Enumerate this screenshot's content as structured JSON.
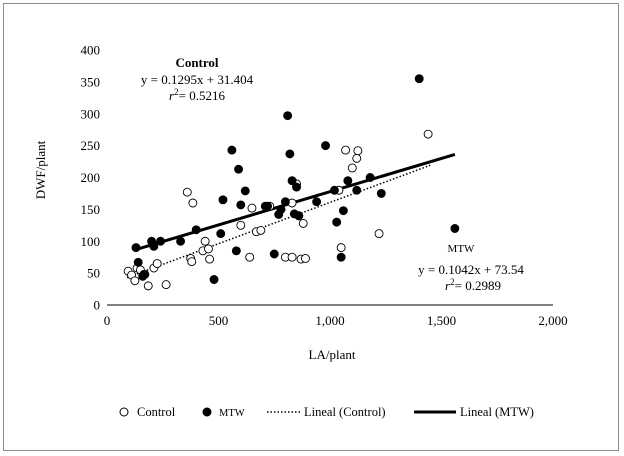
{
  "chart_data": {
    "type": "scatter",
    "xlabel": "LA/plant",
    "ylabel": "DWF/plant",
    "xlim": [
      0,
      2000
    ],
    "ylim": [
      0,
      400
    ],
    "x_ticks": [
      0,
      500,
      1000,
      1500,
      2000
    ],
    "x_tick_labels": [
      "0",
      "500",
      "1,000",
      "1,500",
      "2,000"
    ],
    "y_ticks": [
      0,
      50,
      100,
      150,
      200,
      250,
      300,
      350,
      400
    ],
    "y_tick_labels": [
      "0",
      "50",
      "100",
      "150",
      "200",
      "250",
      "300",
      "350",
      "400"
    ],
    "series": [
      {
        "name": "Control",
        "marker": "open-circle",
        "points": [
          [
            95,
            53
          ],
          [
            110,
            47
          ],
          [
            125,
            38
          ],
          [
            135,
            58
          ],
          [
            150,
            55
          ],
          [
            165,
            48
          ],
          [
            185,
            30
          ],
          [
            210,
            58
          ],
          [
            225,
            65
          ],
          [
            265,
            32
          ],
          [
            360,
            177
          ],
          [
            375,
            73
          ],
          [
            380,
            68
          ],
          [
            385,
            160
          ],
          [
            430,
            85
          ],
          [
            440,
            100
          ],
          [
            455,
            88
          ],
          [
            460,
            72
          ],
          [
            600,
            125
          ],
          [
            640,
            75
          ],
          [
            650,
            152
          ],
          [
            670,
            115
          ],
          [
            690,
            117
          ],
          [
            730,
            155
          ],
          [
            780,
            150
          ],
          [
            800,
            75
          ],
          [
            830,
            75
          ],
          [
            830,
            160
          ],
          [
            850,
            190
          ],
          [
            860,
            140
          ],
          [
            870,
            72
          ],
          [
            880,
            128
          ],
          [
            890,
            73
          ],
          [
            1040,
            180
          ],
          [
            1050,
            90
          ],
          [
            1070,
            243
          ],
          [
            1100,
            215
          ],
          [
            1120,
            230
          ],
          [
            1125,
            242
          ],
          [
            1220,
            112
          ],
          [
            1440,
            268
          ]
        ]
      },
      {
        "name": "MTW",
        "marker": "filled-circle",
        "points": [
          [
            130,
            90
          ],
          [
            140,
            67
          ],
          [
            160,
            45
          ],
          [
            170,
            48
          ],
          [
            200,
            100
          ],
          [
            210,
            92
          ],
          [
            240,
            100
          ],
          [
            330,
            100
          ],
          [
            400,
            118
          ],
          [
            480,
            40
          ],
          [
            510,
            112
          ],
          [
            520,
            165
          ],
          [
            560,
            243
          ],
          [
            580,
            85
          ],
          [
            590,
            213
          ],
          [
            600,
            157
          ],
          [
            620,
            179
          ],
          [
            710,
            155
          ],
          [
            720,
            155
          ],
          [
            750,
            80
          ],
          [
            770,
            142
          ],
          [
            780,
            150
          ],
          [
            800,
            162
          ],
          [
            810,
            297
          ],
          [
            820,
            237
          ],
          [
            830,
            195
          ],
          [
            840,
            143
          ],
          [
            850,
            185
          ],
          [
            860,
            140
          ],
          [
            940,
            162
          ],
          [
            980,
            250
          ],
          [
            1020,
            180
          ],
          [
            1030,
            130
          ],
          [
            1050,
            75
          ],
          [
            1060,
            148
          ],
          [
            1080,
            195
          ],
          [
            1120,
            180
          ],
          [
            1180,
            200
          ],
          [
            1230,
            175
          ],
          [
            1400,
            355
          ],
          [
            1560,
            120
          ]
        ]
      }
    ],
    "trendlines": [
      {
        "name": "Lineal (Control)",
        "style": "dotted",
        "slope": 0.1295,
        "intercept": 31.404,
        "x_range": [
          90,
          1450
        ]
      },
      {
        "name": "Lineal (MTW)",
        "style": "solid-thick",
        "slope": 0.1042,
        "intercept": 73.54,
        "x_range": [
          120,
          1560
        ]
      }
    ],
    "annotations": [
      {
        "id": "control",
        "title": "Control",
        "equation": "y = 0.1295x + 31.404",
        "r2_prefix": "r",
        "r2_suffix": "= 0.5216"
      },
      {
        "id": "mtw",
        "title": "MTW",
        "equation": "y = 0.1042x + 73.54",
        "r2_prefix": "r",
        "r2_suffix": "= 0.2989"
      }
    ],
    "legend": {
      "placement": "bottom",
      "items": [
        {
          "label": "Control",
          "symbol": "open-circle"
        },
        {
          "label": "MTW",
          "symbol": "filled-circle"
        },
        {
          "label": "Lineal (Control)",
          "symbol": "dotted-line"
        },
        {
          "label": "Lineal (MTW)",
          "symbol": "solid-line"
        }
      ]
    }
  }
}
